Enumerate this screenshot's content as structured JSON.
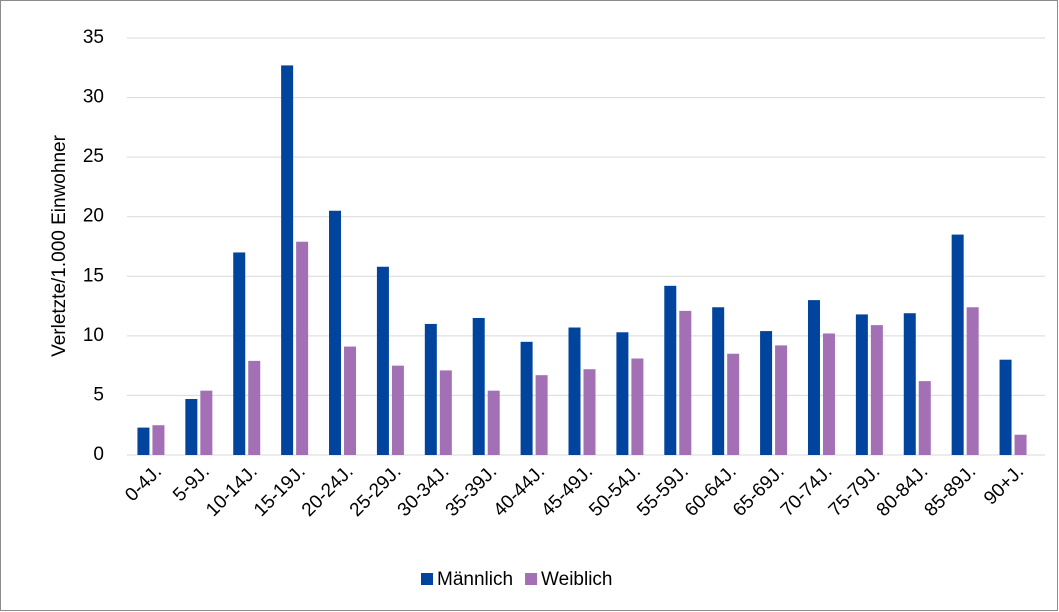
{
  "chart_data": {
    "type": "bar",
    "y_label": "Verletzte/1.000 Einwohner",
    "categories": [
      "0-4J.",
      "5-9J.",
      "10-14J.",
      "15-19J.",
      "20-24J.",
      "25-29J.",
      "30-34J.",
      "35-39J.",
      "40-44J.",
      "45-49J.",
      "50-54J.",
      "55-59J.",
      "60-64J.",
      "65-69J.",
      "70-74J.",
      "75-79J.",
      "80-84J.",
      "85-89J.",
      "90+J."
    ],
    "series": [
      {
        "name": "Männlich",
        "color": "#00449e",
        "values": [
          2.3,
          4.7,
          17.0,
          32.7,
          20.5,
          15.8,
          11.0,
          11.5,
          9.5,
          10.7,
          10.3,
          14.2,
          12.4,
          10.4,
          13.0,
          11.8,
          11.9,
          18.5,
          8.0
        ]
      },
      {
        "name": "Weiblich",
        "color": "#a36fb5",
        "values": [
          2.5,
          5.4,
          7.9,
          17.9,
          9.1,
          7.5,
          7.1,
          5.4,
          6.7,
          7.2,
          8.1,
          12.1,
          8.5,
          9.2,
          10.2,
          10.9,
          6.2,
          12.4,
          1.7
        ]
      }
    ],
    "ylim": [
      0,
      35
    ],
    "yticks": [
      0,
      5,
      10,
      15,
      20,
      25,
      30,
      35
    ],
    "grid": true,
    "legend": "bottom"
  }
}
